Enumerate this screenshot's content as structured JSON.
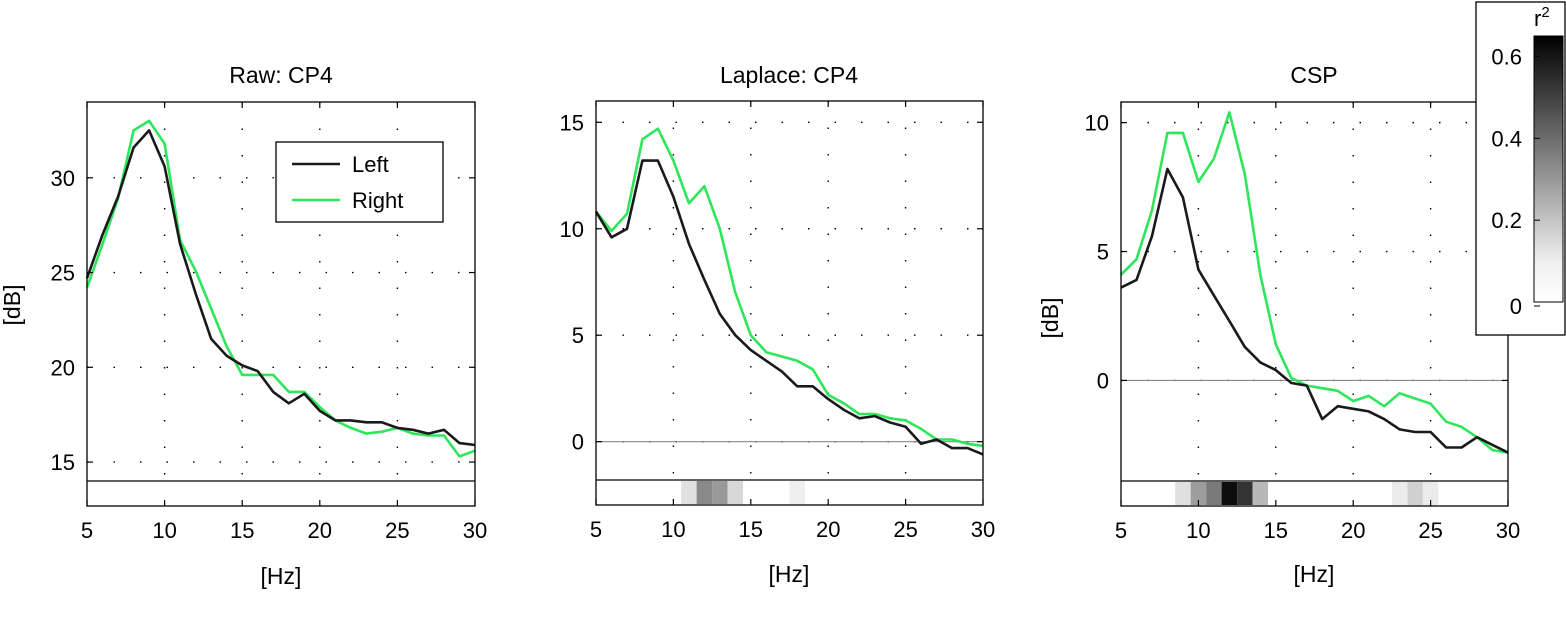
{
  "figure": {
    "colorbar": {
      "label": "r",
      "label_sup": "2",
      "ticks": [
        0,
        0.2,
        0.4,
        0.6
      ],
      "tick_labels": [
        "0",
        "0.2",
        "0.4",
        "0.6"
      ],
      "range": [
        0,
        0.65
      ]
    }
  },
  "chart_data": [
    {
      "type": "line",
      "title": "Raw: CP4",
      "xlabel": "[Hz]",
      "ylabel": "[dB]",
      "xlim": [
        5,
        30
      ],
      "ylim": [
        14,
        34
      ],
      "xticks": [
        5,
        10,
        15,
        20,
        25,
        30
      ],
      "yticks": [
        15,
        20,
        25,
        30
      ],
      "grid": true,
      "zero_line": false,
      "legend": {
        "position": "top-right",
        "entries": [
          "Left",
          "Right"
        ]
      },
      "x": [
        5,
        6,
        7,
        8,
        9,
        10,
        11,
        12,
        13,
        14,
        15,
        16,
        17,
        18,
        19,
        20,
        21,
        22,
        23,
        24,
        25,
        26,
        27,
        28,
        29,
        30
      ],
      "series": [
        {
          "name": "Left",
          "color": "#1a1a1a",
          "values": [
            24.7,
            27.0,
            29.0,
            31.6,
            32.5,
            30.6,
            26.5,
            23.9,
            21.5,
            20.6,
            20.1,
            19.8,
            18.7,
            18.1,
            18.6,
            17.7,
            17.2,
            17.2,
            17.1,
            17.1,
            16.8,
            16.7,
            16.5,
            16.7,
            16.0,
            15.9
          ]
        },
        {
          "name": "Right",
          "color": "#2ee65a",
          "values": [
            24.2,
            26.5,
            28.9,
            32.5,
            33.0,
            31.8,
            26.7,
            25.1,
            23.1,
            21.1,
            19.6,
            19.6,
            19.6,
            18.7,
            18.7,
            17.9,
            17.2,
            16.8,
            16.5,
            16.6,
            16.8,
            16.5,
            16.4,
            16.4,
            15.3,
            15.6
          ]
        }
      ],
      "r2": []
    },
    {
      "type": "line",
      "title": "Laplace: CP4",
      "xlabel": "[Hz]",
      "ylabel": "",
      "xlim": [
        5,
        30
      ],
      "ylim": [
        -1.8,
        16
      ],
      "xticks": [
        5,
        10,
        15,
        20,
        25,
        30
      ],
      "yticks": [
        0,
        5,
        10,
        15
      ],
      "grid": true,
      "zero_line": true,
      "x": [
        5,
        6,
        7,
        8,
        9,
        10,
        11,
        12,
        13,
        14,
        15,
        16,
        17,
        18,
        19,
        20,
        21,
        22,
        23,
        24,
        25,
        26,
        27,
        28,
        29,
        30
      ],
      "series": [
        {
          "name": "Left",
          "color": "#1a1a1a",
          "values": [
            10.8,
            9.6,
            10.0,
            13.2,
            13.2,
            11.5,
            9.3,
            7.6,
            6.0,
            5.0,
            4.3,
            3.8,
            3.3,
            2.6,
            2.6,
            2.0,
            1.5,
            1.1,
            1.2,
            0.9,
            0.7,
            -0.1,
            0.1,
            -0.3,
            -0.3,
            -0.6
          ]
        },
        {
          "name": "Right",
          "color": "#2ee65a",
          "values": [
            10.8,
            9.9,
            10.7,
            14.2,
            14.7,
            13.2,
            11.2,
            12.0,
            10.0,
            7.0,
            5.0,
            4.2,
            4.0,
            3.8,
            3.4,
            2.2,
            1.8,
            1.3,
            1.3,
            1.1,
            1.0,
            0.6,
            0.1,
            0.1,
            -0.1,
            -0.2
          ]
        }
      ],
      "r2": [
        0,
        0,
        0,
        0,
        0,
        0,
        0.08,
        0.3,
        0.26,
        0.1,
        0,
        0,
        0,
        0.04,
        0,
        0,
        0,
        0,
        0,
        0,
        0,
        0,
        0,
        0,
        0,
        0
      ]
    },
    {
      "type": "line",
      "title": "CSP",
      "xlabel": "[Hz]",
      "ylabel": "[dB]",
      "xlim": [
        5,
        30
      ],
      "ylim": [
        -3.9,
        10.8
      ],
      "xticks": [
        5,
        10,
        15,
        20,
        25,
        30
      ],
      "yticks": [
        0,
        5,
        10
      ],
      "grid": true,
      "zero_line": true,
      "x": [
        5,
        6,
        7,
        8,
        9,
        10,
        11,
        12,
        13,
        14,
        15,
        16,
        17,
        18,
        19,
        20,
        21,
        22,
        23,
        24,
        25,
        26,
        27,
        28,
        29,
        30
      ],
      "series": [
        {
          "name": "Left",
          "color": "#1a1a1a",
          "values": [
            3.6,
            3.9,
            5.6,
            8.2,
            7.1,
            4.3,
            3.3,
            2.3,
            1.3,
            0.7,
            0.4,
            -0.1,
            -0.2,
            -1.5,
            -1.0,
            -1.1,
            -1.2,
            -1.5,
            -1.9,
            -2.0,
            -2.0,
            -2.6,
            -2.6,
            -2.2,
            -2.5,
            -2.8
          ]
        },
        {
          "name": "Right",
          "color": "#2ee65a",
          "values": [
            4.1,
            4.7,
            6.6,
            9.6,
            9.6,
            7.7,
            8.6,
            10.4,
            8.0,
            4.1,
            1.4,
            0.1,
            -0.2,
            -0.3,
            -0.4,
            -0.8,
            -0.6,
            -1.0,
            -0.5,
            -0.7,
            -0.9,
            -1.6,
            -1.8,
            -2.2,
            -2.7,
            -2.8
          ]
        }
      ],
      "r2": [
        0,
        0,
        0,
        0,
        0.08,
        0.25,
        0.34,
        0.62,
        0.52,
        0.18,
        0,
        0,
        0,
        0,
        0,
        0,
        0,
        0,
        0.05,
        0.12,
        0.05,
        0,
        0,
        0,
        0,
        0
      ]
    }
  ]
}
